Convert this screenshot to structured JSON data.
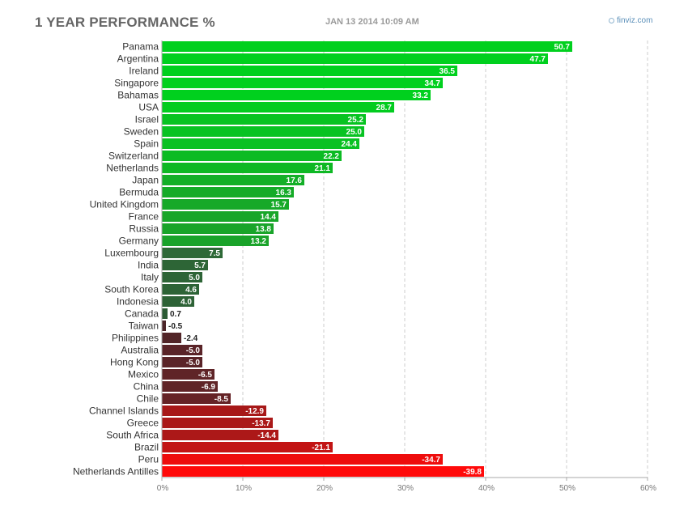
{
  "header": {
    "title": "1 YEAR PERFORMANCE %",
    "timestamp": "JAN 13 2014 10:09 AM",
    "brand": "finviz.com"
  },
  "chart_data": {
    "type": "bar",
    "orientation": "horizontal",
    "title": "1 YEAR PERFORMANCE %",
    "xlabel": "",
    "ylabel": "",
    "xlim": [
      0,
      60
    ],
    "x_ticks": [
      "0%",
      "10%",
      "20%",
      "30%",
      "40%",
      "50%",
      "60%"
    ],
    "grid": true,
    "colors": {
      "positive_strong": "#00d01e",
      "positive_weak": "#2b5a34",
      "negative_weak": "#4a2529",
      "negative_strong": "#ff0a0a"
    },
    "categories": [
      "Panama",
      "Argentina",
      "Ireland",
      "Singapore",
      "Bahamas",
      "USA",
      "Israel",
      "Sweden",
      "Spain",
      "Switzerland",
      "Netherlands",
      "Japan",
      "Bermuda",
      "United Kingdom",
      "France",
      "Russia",
      "Germany",
      "Luxembourg",
      "India",
      "Italy",
      "South Korea",
      "Indonesia",
      "Canada",
      "Taiwan",
      "Philippines",
      "Australia",
      "Hong Kong",
      "Mexico",
      "China",
      "Chile",
      "Channel Islands",
      "Greece",
      "South Africa",
      "Brazil",
      "Peru",
      "Netherlands Antilles"
    ],
    "values": [
      50.7,
      47.7,
      36.5,
      34.7,
      33.2,
      28.7,
      25.2,
      25.0,
      24.4,
      22.2,
      21.1,
      17.6,
      16.3,
      15.7,
      14.4,
      13.8,
      13.2,
      7.5,
      5.7,
      5.0,
      4.6,
      4.0,
      0.7,
      -0.5,
      -2.4,
      -5.0,
      -5.0,
      -6.5,
      -6.9,
      -8.5,
      -12.9,
      -13.7,
      -14.4,
      -21.1,
      -34.7,
      -39.8
    ],
    "value_labels": [
      "50.7",
      "47.7",
      "36.5",
      "34.7",
      "33.2",
      "28.7",
      "25.2",
      "25.0",
      "24.4",
      "22.2",
      "21.1",
      "17.6",
      "16.3",
      "15.7",
      "14.4",
      "13.8",
      "13.2",
      "7.5",
      "5.7",
      "5.0",
      "4.6",
      "4.0",
      "0.7",
      "-0.5",
      "-2.4",
      "-5.0",
      "-5.0",
      "-6.5",
      "-6.9",
      "-8.5",
      "-12.9",
      "-13.7",
      "-14.4",
      "-21.1",
      "-34.7",
      "-39.8"
    ]
  }
}
